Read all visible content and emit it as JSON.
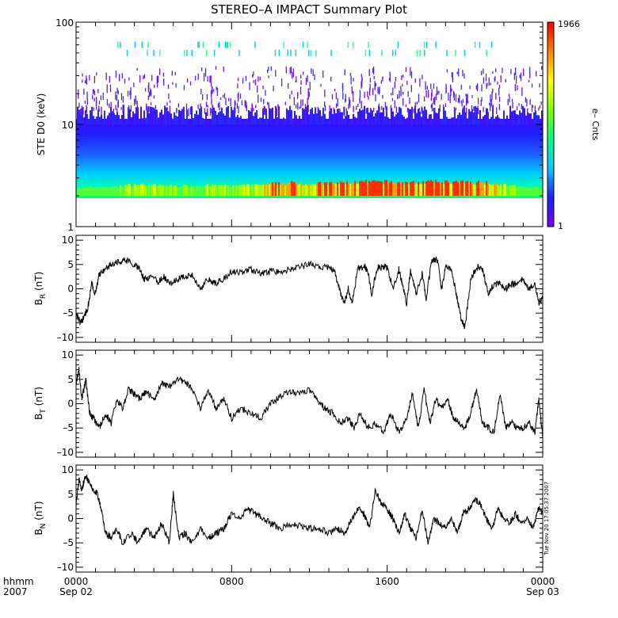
{
  "chart_data": [
    {
      "type": "heatmap",
      "title": "STEREO–A IMPACT Summary Plot",
      "ylabel": "STE D0 (keV)",
      "yscale": "log",
      "ylim": [
        1,
        100
      ],
      "yticks": [
        "1",
        "10",
        "100"
      ],
      "colorbar": {
        "label": "e– Cnts",
        "min": "1",
        "max": "1966",
        "scale": "log",
        "colors": [
          "#8000ff",
          "#2020ff",
          "#00c8ff",
          "#00ff80",
          "#80ff00",
          "#ffff00",
          "#ff8000",
          "#ff0000"
        ]
      },
      "xlim_hours": [
        0,
        24
      ],
      "energy_band_keV": [
        2,
        10
      ],
      "intensity_profile": {
        "hours": [
          0,
          1,
          2,
          3,
          4,
          5,
          6,
          7,
          8,
          9,
          10,
          11,
          12,
          13,
          14,
          15,
          16,
          17,
          18,
          19,
          20,
          21,
          22,
          23,
          24
        ],
        "low_energy_level": [
          0.35,
          0.4,
          0.45,
          0.7,
          0.6,
          0.55,
          0.55,
          0.6,
          0.55,
          0.6,
          0.75,
          0.85,
          0.8,
          0.8,
          0.9,
          0.95,
          0.95,
          0.85,
          0.95,
          0.95,
          0.9,
          0.95,
          0.65,
          0.4,
          0.35
        ]
      }
    },
    {
      "type": "line",
      "ylabel_main": "B",
      "ylabel_sub": "R",
      "ylabel_unit": " (nT)",
      "ylim": [
        -11,
        11
      ],
      "yticks": [
        "10",
        "5",
        "0",
        "–5",
        "–10"
      ],
      "ytick_values": [
        10,
        5,
        0,
        -5,
        -10
      ],
      "x": [
        0,
        0.2,
        0.4,
        0.6,
        0.8,
        1.0,
        1.2,
        1.5,
        1.8,
        2.2,
        2.5,
        2.8,
        3.2,
        3.5,
        3.8,
        4.2,
        4.5,
        4.8,
        5.2,
        5.6,
        6.0,
        6.4,
        6.8,
        7.2,
        7.6,
        8.0,
        8.5,
        9.0,
        9.5,
        10.0,
        10.5,
        11.0,
        11.5,
        12.0,
        12.5,
        13.0,
        13.3,
        13.6,
        13.8,
        14.0,
        14.2,
        14.5,
        14.8,
        15.0,
        15.2,
        15.5,
        15.8,
        16.0,
        16.3,
        16.6,
        16.8,
        17.0,
        17.2,
        17.5,
        17.8,
        18.0,
        18.3,
        18.6,
        18.8,
        19.0,
        19.3,
        19.6,
        19.8,
        20.0,
        20.3,
        20.6,
        20.9,
        21.2,
        21.5,
        21.8,
        22.1,
        22.4,
        22.7,
        23.0,
        23.3,
        23.6,
        23.8,
        24.0
      ],
      "y": [
        -5,
        -7,
        -6,
        -4,
        1,
        -1,
        3,
        4,
        5,
        5.5,
        6,
        5.5,
        4.5,
        2,
        2.5,
        1.5,
        2.5,
        1,
        2,
        2.5,
        3,
        0,
        2,
        1,
        2,
        3.5,
        3.5,
        4,
        3,
        3.5,
        3.5,
        4,
        4.5,
        5,
        4.5,
        4.5,
        3.5,
        -1,
        -3,
        0,
        -3,
        4.5,
        4.5,
        4,
        -1,
        4.5,
        4.5,
        4.5,
        0,
        4,
        1,
        -3,
        3.5,
        -1,
        3,
        -2,
        6,
        6,
        0,
        4.5,
        4,
        -2,
        -6,
        -8,
        2,
        4.5,
        4,
        -1,
        1,
        1,
        0,
        1,
        1,
        2,
        0,
        1,
        -3,
        -2
      ]
    },
    {
      "type": "line",
      "ylabel_main": "B",
      "ylabel_sub": "T",
      "ylabel_unit": " (nT)",
      "ylim": [
        -11,
        11
      ],
      "yticks": [
        "10",
        "5",
        "0",
        "–5",
        "–10"
      ],
      "ytick_values": [
        10,
        5,
        0,
        -5,
        -10
      ],
      "x": [
        0,
        0.15,
        0.3,
        0.5,
        0.7,
        0.9,
        1.2,
        1.5,
        1.8,
        2.1,
        2.4,
        2.7,
        3.0,
        3.3,
        3.6,
        4.0,
        4.4,
        4.8,
        5.2,
        5.6,
        6.0,
        6.4,
        6.8,
        7.2,
        7.6,
        8.0,
        8.5,
        9.0,
        9.5,
        10.0,
        10.5,
        11.0,
        11.5,
        12.0,
        12.4,
        12.8,
        13.2,
        13.6,
        14.0,
        14.3,
        14.6,
        15.0,
        15.4,
        15.8,
        16.2,
        16.6,
        17.0,
        17.3,
        17.6,
        17.9,
        18.2,
        18.5,
        18.8,
        19.1,
        19.4,
        19.7,
        20.0,
        20.3,
        20.6,
        20.9,
        21.2,
        21.5,
        21.8,
        22.1,
        22.4,
        22.7,
        23.0,
        23.3,
        23.6,
        23.8,
        24.0
      ],
      "y": [
        4,
        7,
        1,
        5,
        -2,
        -3,
        -5,
        -2,
        -4,
        1,
        -1,
        3,
        2,
        1,
        2.5,
        1,
        4,
        3.5,
        5,
        4.5,
        3,
        -1,
        3,
        -1,
        1,
        -3,
        -1,
        -2,
        -3,
        0,
        1.5,
        2.5,
        2,
        3,
        1,
        -1,
        -2,
        -4,
        -3,
        -5,
        -2,
        -5,
        -4,
        -6,
        -2,
        -6,
        -3,
        2,
        -5,
        3,
        -4,
        1,
        -1,
        1,
        -3,
        -4,
        -5,
        -2,
        3,
        -4,
        -5,
        -6,
        2,
        -5,
        -4,
        -5,
        -5,
        -4,
        -6,
        1,
        -7
      ]
    },
    {
      "type": "line",
      "ylabel_main": "B",
      "ylabel_sub": "N",
      "ylabel_unit": " (nT)",
      "ylim": [
        -11,
        11
      ],
      "yticks": [
        "10",
        "5",
        "0",
        "–5",
        "–10"
      ],
      "ytick_values": [
        10,
        5,
        0,
        -5,
        -10
      ],
      "x": [
        0,
        0.15,
        0.3,
        0.5,
        0.7,
        0.9,
        1.1,
        1.3,
        1.5,
        1.8,
        2.1,
        2.4,
        2.8,
        3.2,
        3.6,
        4.0,
        4.4,
        4.8,
        5.0,
        5.3,
        5.6,
        6.0,
        6.4,
        6.8,
        7.2,
        7.6,
        8.0,
        8.4,
        8.8,
        9.2,
        9.6,
        10.0,
        10.5,
        11.0,
        11.5,
        12.0,
        12.5,
        13.0,
        13.4,
        13.8,
        14.2,
        14.5,
        14.8,
        15.1,
        15.4,
        15.7,
        16.0,
        16.3,
        16.6,
        16.9,
        17.2,
        17.5,
        17.8,
        18.1,
        18.4,
        18.7,
        19.0,
        19.3,
        19.6,
        19.9,
        20.2,
        20.5,
        20.8,
        21.1,
        21.4,
        21.7,
        22.0,
        22.3,
        22.6,
        22.9,
        23.2,
        23.5,
        23.8,
        24.0
      ],
      "y": [
        3,
        8,
        6,
        9,
        7,
        6,
        5,
        2,
        -3,
        -4,
        -2,
        -5,
        -3,
        -5,
        -2,
        -4,
        -1,
        -5,
        5,
        -4,
        -3,
        -5,
        -2,
        -4,
        -3,
        -2,
        1,
        0,
        2,
        1,
        0,
        -1,
        -2,
        -1,
        -1.5,
        -2,
        -2,
        -3,
        -2,
        -3,
        0,
        2,
        1,
        -2,
        6,
        3,
        2,
        0,
        -3,
        1,
        -2,
        -4,
        2,
        -5,
        0,
        -1,
        -2,
        0,
        -3,
        1,
        2,
        4,
        3,
        0,
        -2,
        2,
        0,
        -1,
        1,
        -1,
        0,
        -2,
        2,
        1
      ]
    }
  ],
  "xaxis": {
    "corner_label_top": "hhmm",
    "corner_label_bottom": "2007",
    "ticks": [
      {
        "hour": 0,
        "time": "0000",
        "date": "Sep 02"
      },
      {
        "hour": 8,
        "time": "0800",
        "date": ""
      },
      {
        "hour": 16,
        "time": "1600",
        "date": ""
      },
      {
        "hour": 24,
        "time": "0000",
        "date": "Sep 03"
      }
    ]
  },
  "timestamp": "Tue Nov 20 17:05:37 2007"
}
